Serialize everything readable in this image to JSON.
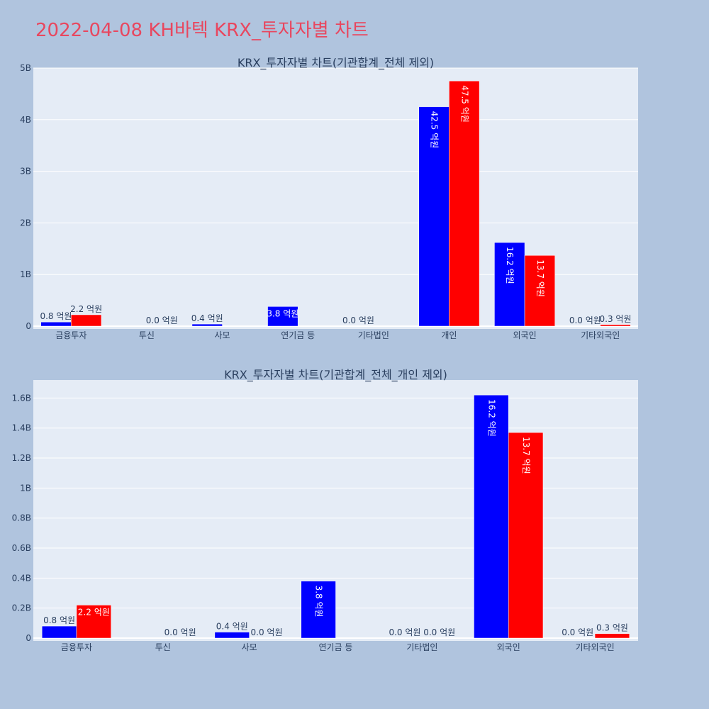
{
  "title": "2022-04-08 KH바텍 KRX_투자자별 차트",
  "colors": {
    "page_bg": "#b0c4de",
    "plot_bg": "#e5ecf6",
    "series_a": "#0000ff",
    "series_b": "#ff0000",
    "title": "#e8475f",
    "text": "#2a3f5f"
  },
  "chart_data": [
    {
      "type": "bar",
      "title": "KRX_투자자별 차트(기관합계_전체 제외)",
      "categories": [
        "금융투자",
        "투신",
        "사모",
        "연기금 등",
        "기타법인",
        "개인",
        "외국인",
        "기타외국인"
      ],
      "series": [
        {
          "color": "#0000ff",
          "values": [
            80000000,
            null,
            40000000,
            380000000,
            0,
            4250000000,
            1620000000,
            0
          ],
          "labels": [
            "0.8 억원",
            null,
            "0.4 억원",
            "3.8 억원",
            "0.0 억원",
            "42.5 억원",
            "16.2 억원",
            "0.0 억원"
          ]
        },
        {
          "color": "#ff0000",
          "values": [
            220000000,
            0,
            null,
            null,
            null,
            4750000000,
            1370000000,
            30000000
          ],
          "labels": [
            "2.2 억원",
            "0.0 억원",
            null,
            null,
            null,
            "47.5 억원",
            "13.7 억원",
            "0.3 억원"
          ]
        }
      ],
      "ylim": [
        0,
        5000000000
      ],
      "ytick_values": [
        0,
        1000000000,
        2000000000,
        3000000000,
        4000000000,
        5000000000
      ],
      "ytick_labels": [
        "0",
        "1B",
        "2B",
        "3B",
        "4B",
        "5B"
      ],
      "grid": true
    },
    {
      "type": "bar",
      "title": "KRX_투자자별 차트(기관합계_전체_개인 제외)",
      "categories": [
        "금융투자",
        "투신",
        "사모",
        "연기금 등",
        "기타법인",
        "외국인",
        "기타외국인"
      ],
      "series": [
        {
          "color": "#0000ff",
          "values": [
            80000000,
            null,
            40000000,
            380000000,
            0,
            1620000000,
            0
          ],
          "labels": [
            "0.8 억원",
            null,
            "0.4 억원",
            "3.8 억원",
            "0.0 억원",
            "16.2 억원",
            "0.0 억원"
          ]
        },
        {
          "color": "#ff0000",
          "values": [
            220000000,
            0,
            0,
            null,
            0,
            1370000000,
            30000000
          ],
          "labels": [
            "2.2 억원",
            "0.0 억원",
            "0.0 억원",
            null,
            "0.0 억원",
            "13.7 억원",
            "0.3 억원"
          ]
        }
      ],
      "ylim": [
        0,
        1720000000
      ],
      "ytick_values": [
        0,
        200000000,
        400000000,
        600000000,
        800000000,
        1000000000,
        1200000000,
        1400000000,
        1600000000
      ],
      "ytick_labels": [
        "0",
        "0.2B",
        "0.4B",
        "0.6B",
        "0.8B",
        "1B",
        "1.2B",
        "1.4B",
        "1.6B"
      ],
      "grid": true
    }
  ]
}
